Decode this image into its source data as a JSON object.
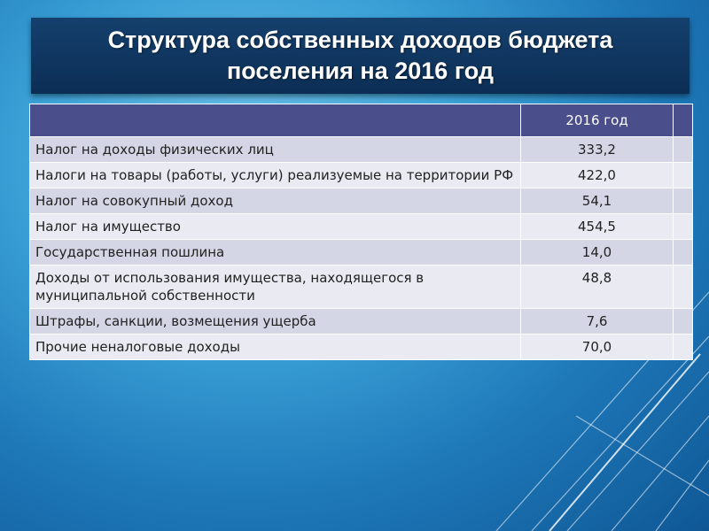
{
  "title": "Структура собственных доходов бюджета поселения на 2016  год",
  "table": {
    "header": {
      "name": "",
      "value": "2016 год",
      "extra": ""
    },
    "rows": [
      {
        "name": "Налог на доходы физических лиц",
        "value": "333,2"
      },
      {
        "name": "Налоги на товары (работы, услуги) реализуемые на территории РФ",
        "value": "422,0"
      },
      {
        "name": "Налог на совокупный доход",
        "value": "54,1"
      },
      {
        "name": "Налог на имущество",
        "value": "454,5"
      },
      {
        "name": "Государственная пошлина",
        "value": "14,0"
      },
      {
        "name": "Доходы от использования имущества, находящегося в муниципальной собственности",
        "value": "48,8"
      },
      {
        "name": "Штрафы, санкции, возмещения ущерба",
        "value": "7,6"
      },
      {
        "name": "Прочие  неналоговые  доходы",
        "value": "70,0"
      }
    ]
  },
  "colors": {
    "background": "#1e78b8",
    "title_bar": "#0c2e55",
    "header_row": "#4a4f8c",
    "row_dark": "#d4d6e6",
    "row_light": "#e9eaf2"
  }
}
